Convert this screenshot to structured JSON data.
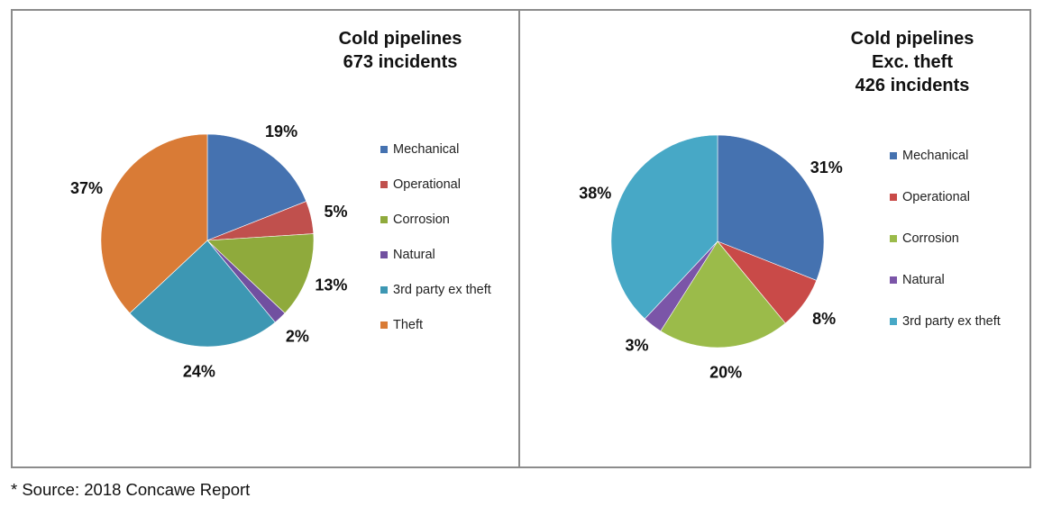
{
  "source_note": "* Source: 2018 Concawe Report",
  "chart_data": [
    {
      "type": "pie",
      "title": "Cold pipelines",
      "subtitle": "673 incidents",
      "categories": [
        "Mechanical",
        "Operational",
        "Corrosion",
        "Natural",
        "3rd party ex theft",
        "Theft"
      ],
      "values": [
        19,
        5,
        13,
        2,
        24,
        37
      ],
      "labels": [
        "19%",
        "5%",
        "13%",
        "2%",
        "24%",
        "37%"
      ],
      "colors": [
        "#4572b0",
        "#c0504d",
        "#8faa3c",
        "#7150a0",
        "#3d97b3",
        "#d97b36"
      ],
      "legend_position": "right"
    },
    {
      "type": "pie",
      "title": "Cold pipelines",
      "title_line2": "Exc. theft",
      "subtitle": "426 incidents",
      "categories": [
        "Mechanical",
        "Operational",
        "Corrosion",
        "Natural",
        "3rd party ex theft"
      ],
      "values": [
        31,
        8,
        20,
        3,
        38
      ],
      "labels": [
        "31%",
        "8%",
        "20%",
        "3%",
        "38%"
      ],
      "colors": [
        "#4572b0",
        "#c94a48",
        "#9bbb4a",
        "#7b55a8",
        "#47a8c6"
      ],
      "legend_position": "right"
    }
  ]
}
